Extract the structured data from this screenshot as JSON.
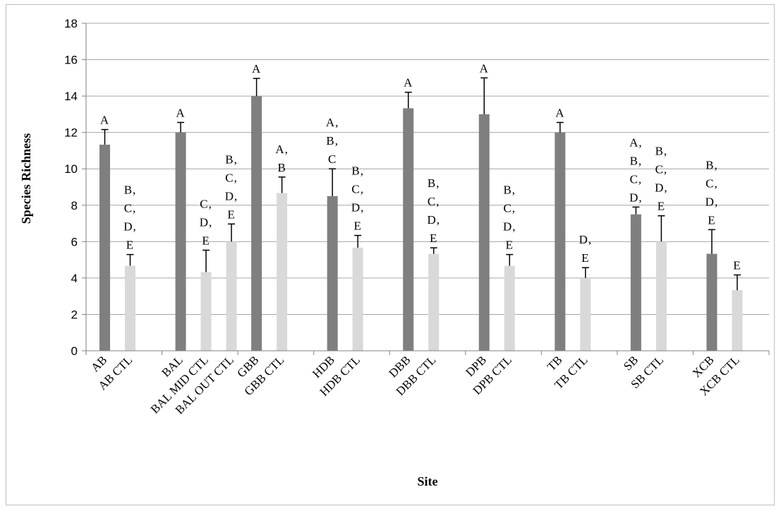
{
  "chart_data": {
    "type": "bar",
    "xlabel": "Site",
    "ylabel": "Species Richness",
    "ylim": [
      0,
      18
    ],
    "yticks": [
      0,
      2,
      4,
      6,
      8,
      10,
      12,
      14,
      16,
      18
    ],
    "grid": true,
    "legend": "none",
    "colors": {
      "site": "#7f7f7f",
      "control": "#d9d9d9",
      "gridline": "#a6a6a6",
      "axis": "#808080",
      "error": "#000000"
    },
    "bars": [
      {
        "category": "AB",
        "group": "site",
        "value": 11.33,
        "error": 0.83,
        "letters": [
          "A"
        ]
      },
      {
        "category": "AB CTL",
        "group": "control",
        "value": 4.67,
        "error": 0.62,
        "letters": [
          "B,",
          "C,",
          "D,",
          "E"
        ]
      },
      {
        "category": "BAL",
        "group": "site",
        "value": 12.0,
        "error": 0.55,
        "letters": [
          "A"
        ]
      },
      {
        "category": "BAL MID CTL",
        "group": "control",
        "value": 4.33,
        "error": 1.2,
        "letters": [
          "C,",
          "D,",
          "E"
        ]
      },
      {
        "category": "BAL OUT CTL",
        "group": "control",
        "value": 6.0,
        "error": 0.97,
        "letters": [
          "B,",
          "C,",
          "D,",
          "E"
        ]
      },
      {
        "category": "GBB",
        "group": "site",
        "value": 14.0,
        "error": 0.97,
        "letters": [
          "A"
        ]
      },
      {
        "category": "GBB CTL",
        "group": "control",
        "value": 8.67,
        "error": 0.88,
        "letters": [
          "A,",
          "B"
        ]
      },
      {
        "category": "HDB",
        "group": "site",
        "value": 8.5,
        "error": 1.5,
        "letters": [
          "A,",
          "B,",
          "C"
        ]
      },
      {
        "category": "HDB CTL",
        "group": "control",
        "value": 5.67,
        "error": 0.67,
        "letters": [
          "B,",
          "C,",
          "D,",
          "E"
        ]
      },
      {
        "category": "DBB",
        "group": "site",
        "value": 13.33,
        "error": 0.88,
        "letters": [
          "A"
        ]
      },
      {
        "category": "DBB CTL",
        "group": "control",
        "value": 5.33,
        "error": 0.33,
        "letters": [
          "B,",
          "C,",
          "D,",
          "E"
        ]
      },
      {
        "category": "DPB",
        "group": "site",
        "value": 13.0,
        "error": 2.0,
        "letters": [
          "A"
        ]
      },
      {
        "category": "DPB CTL",
        "group": "control",
        "value": 4.67,
        "error": 0.62,
        "letters": [
          "B,",
          "C,",
          "D,",
          "E"
        ]
      },
      {
        "category": "TB",
        "group": "site",
        "value": 12.0,
        "error": 0.55,
        "letters": [
          "A"
        ]
      },
      {
        "category": "TB CTL",
        "group": "control",
        "value": 4.0,
        "error": 0.57,
        "letters": [
          "D,",
          "E"
        ]
      },
      {
        "category": "SB",
        "group": "site",
        "value": 7.5,
        "error": 0.4,
        "letters": [
          "A,",
          "B,",
          "C,",
          "D,"
        ]
      },
      {
        "category": "SB CTL",
        "group": "control",
        "value": 6.0,
        "error": 1.42,
        "letters": [
          "B,",
          "C,",
          "D,",
          "E"
        ]
      },
      {
        "category": "XCB",
        "group": "site",
        "value": 5.33,
        "error": 1.33,
        "letters": [
          "B,",
          "C,",
          "D,",
          "E"
        ]
      },
      {
        "category": "XCB CTL",
        "group": "control",
        "value": 3.33,
        "error": 0.84,
        "letters": [
          "E"
        ]
      }
    ]
  }
}
